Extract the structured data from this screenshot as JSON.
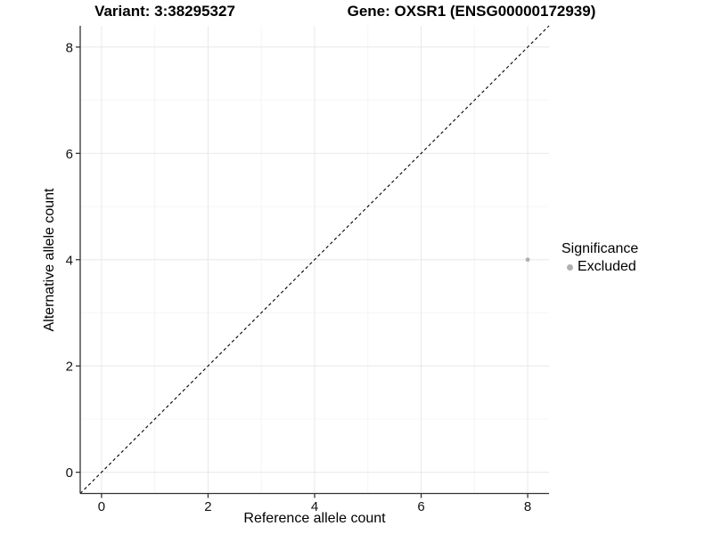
{
  "chart_data": {
    "type": "scatter",
    "titles": {
      "left": "Variant: 3:38295327",
      "right": "Gene: OXSR1 (ENSG00000172939)"
    },
    "xlabel": "Reference allele count",
    "ylabel": "Alternative allele count",
    "xlim": [
      -0.4,
      8.4
    ],
    "ylim": [
      -0.4,
      8.4
    ],
    "x_ticks": [
      0,
      2,
      4,
      6,
      8
    ],
    "y_ticks": [
      0,
      2,
      4,
      6,
      8
    ],
    "x_minor_breaks": [
      1,
      3,
      5,
      7
    ],
    "y_minor_breaks": [
      1,
      3,
      5,
      7
    ],
    "grid": "major+minor",
    "identity_line": {
      "slope": 1,
      "intercept": 0,
      "style": "dashed"
    },
    "series": [
      {
        "name": "Excluded",
        "color": "#b0b0b0",
        "point_radius": 2.4,
        "points": [
          {
            "x": 8,
            "y": 4
          }
        ]
      }
    ],
    "legend": {
      "title": "Significance",
      "position": "right",
      "items": [
        {
          "label": "Excluded",
          "color": "#b0b0b0"
        }
      ]
    },
    "colors": {
      "background": "#ffffff",
      "grid_major": "#e8e8e8",
      "grid_minor": "#f4f4f4",
      "axis": "#333333",
      "tick_text": "#111111",
      "title_text": "#000000",
      "identity_line": "#000000"
    }
  }
}
